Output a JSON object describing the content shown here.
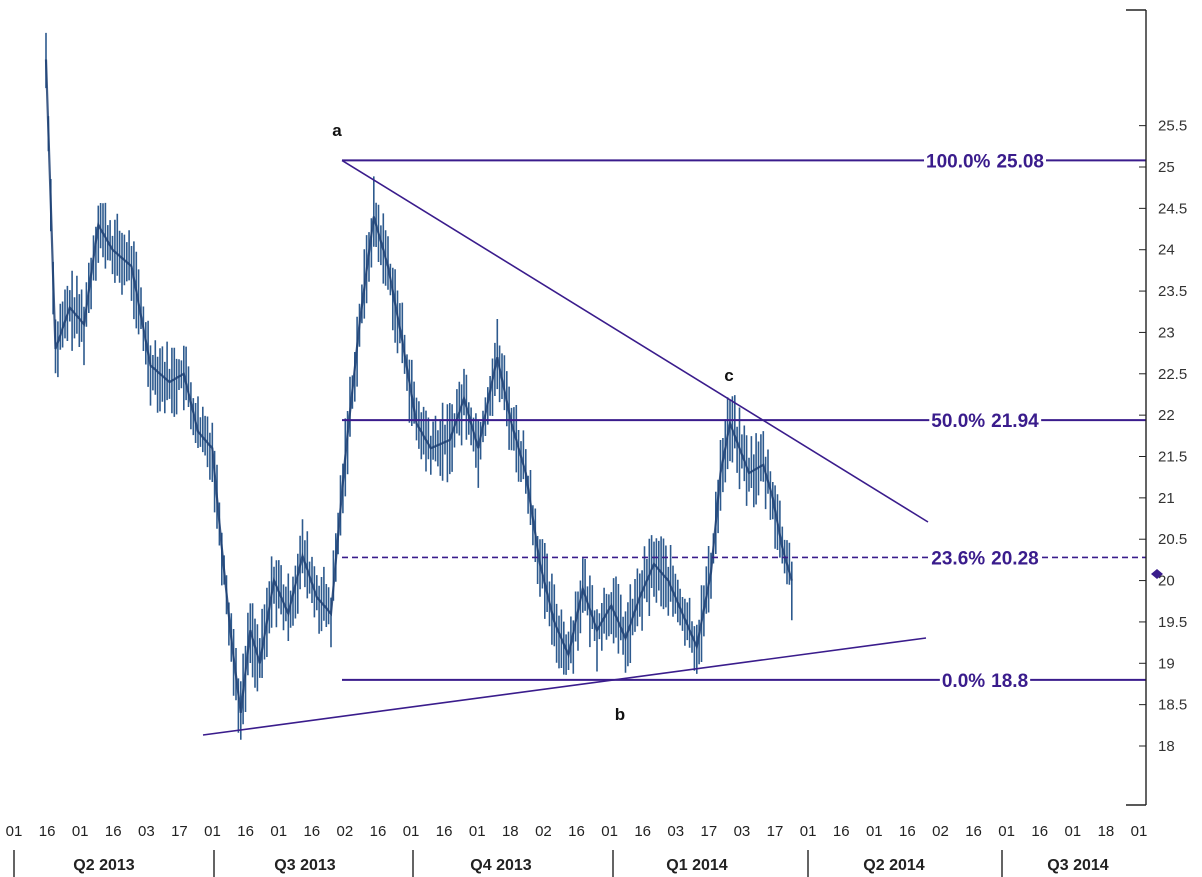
{
  "chart_data": {
    "type": "candlestick",
    "y_axis": {
      "ticks": [
        "18",
        "18.5",
        "19",
        "19.5",
        "20",
        "20.5",
        "21",
        "21.5",
        "22",
        "22.5",
        "23",
        "23.5",
        "24",
        "24.5",
        "25",
        "25.5"
      ],
      "range": [
        17.4,
        26.8
      ],
      "side": "right"
    },
    "x_axis": {
      "tick_labels": [
        "01",
        "16",
        "01",
        "16",
        "03",
        "17",
        "01",
        "16",
        "01",
        "16",
        "02",
        "16",
        "01",
        "16",
        "01",
        "18",
        "02",
        "16",
        "01",
        "16",
        "03",
        "17",
        "03",
        "17",
        "01",
        "16",
        "01",
        "16",
        "02",
        "16",
        "01",
        "16",
        "01",
        "18",
        "01"
      ],
      "quarters": [
        "Q2 2013",
        "Q3 2013",
        "Q4 2013",
        "Q1 2014",
        "Q2 2014",
        "Q3 2014"
      ]
    },
    "fib_levels": [
      {
        "label": "100.0%",
        "value": "25.08",
        "y": 25.08,
        "dashed": false
      },
      {
        "label": "50.0%",
        "value": "21.94",
        "y": 21.94,
        "dashed": false
      },
      {
        "label": "23.6%",
        "value": "20.28",
        "y": 20.28,
        "dashed": true
      },
      {
        "label": "0.0%",
        "value": "18.8",
        "y": 18.8,
        "dashed": false
      }
    ],
    "points": [
      {
        "label": "a",
        "value": 25.08
      },
      {
        "label": "b",
        "value": 18.8
      },
      {
        "label": "c",
        "value": 22.1
      }
    ],
    "price_path": [
      [
        0,
        26.3
      ],
      [
        2,
        22.8
      ],
      [
        5,
        23.3
      ],
      [
        8,
        23.1
      ],
      [
        11,
        24.3
      ],
      [
        14,
        24.0
      ],
      [
        18,
        23.8
      ],
      [
        22,
        22.6
      ],
      [
        26,
        22.4
      ],
      [
        29,
        22.5
      ],
      [
        32,
        21.8
      ],
      [
        35,
        21.6
      ],
      [
        37,
        20.4
      ],
      [
        39,
        19.3
      ],
      [
        41,
        18.4
      ],
      [
        43,
        19.4
      ],
      [
        45,
        19.0
      ],
      [
        48,
        20.0
      ],
      [
        51,
        19.6
      ],
      [
        54,
        20.3
      ],
      [
        57,
        19.8
      ],
      [
        60,
        19.6
      ],
      [
        63,
        21.5
      ],
      [
        66,
        23.1
      ],
      [
        69,
        24.4
      ],
      [
        72,
        23.8
      ],
      [
        75,
        22.9
      ],
      [
        78,
        21.9
      ],
      [
        81,
        21.6
      ],
      [
        85,
        21.7
      ],
      [
        88,
        22.2
      ],
      [
        91,
        21.6
      ],
      [
        95,
        22.7
      ],
      [
        98,
        21.9
      ],
      [
        101,
        21.3
      ],
      [
        104,
        20.2
      ],
      [
        107,
        19.5
      ],
      [
        110,
        19.1
      ],
      [
        113,
        19.9
      ],
      [
        116,
        19.4
      ],
      [
        119,
        19.7
      ],
      [
        122,
        19.3
      ],
      [
        125,
        19.8
      ],
      [
        128,
        20.2
      ],
      [
        131,
        20.0
      ],
      [
        134,
        19.6
      ],
      [
        137,
        19.2
      ],
      [
        140,
        20.1
      ],
      [
        142,
        21.3
      ],
      [
        144,
        21.9
      ],
      [
        146,
        21.6
      ],
      [
        148,
        21.3
      ],
      [
        151,
        21.4
      ],
      [
        153,
        21.0
      ],
      [
        155,
        20.4
      ],
      [
        157,
        20.0
      ]
    ]
  }
}
